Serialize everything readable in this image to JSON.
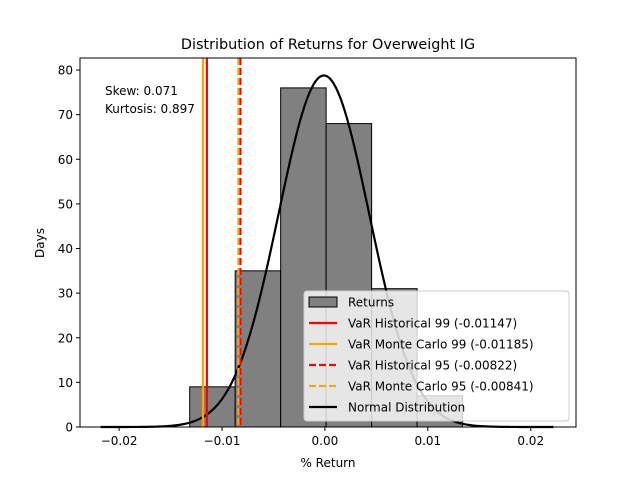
{
  "chart_data": {
    "type": "histogram",
    "title": "Distribution of Returns for Overweight IG",
    "xlabel": "% Return",
    "ylabel": "Days",
    "xlim": [
      -0.0238,
      0.0244
    ],
    "ylim": [
      0,
      82.7
    ],
    "x_ticks": [
      -0.02,
      -0.01,
      0.0,
      0.01,
      0.02
    ],
    "x_tick_labels": [
      "−0.02",
      "−0.01",
      "0.00",
      "0.01",
      "0.02"
    ],
    "y_ticks": [
      0,
      10,
      20,
      30,
      40,
      50,
      60,
      70,
      80
    ],
    "y_tick_labels": [
      "0",
      "10",
      "20",
      "30",
      "40",
      "50",
      "60",
      "70",
      "80"
    ],
    "bars": [
      {
        "x0": -0.01314,
        "x1": -0.00872,
        "count": 9
      },
      {
        "x0": -0.00872,
        "x1": -0.0043,
        "count": 35
      },
      {
        "x0": -0.0043,
        "x1": 0.00012,
        "count": 76
      },
      {
        "x0": 0.00012,
        "x1": 0.00454,
        "count": 68
      },
      {
        "x0": 0.00454,
        "x1": 0.00896,
        "count": 31
      },
      {
        "x0": 0.00896,
        "x1": 0.01338,
        "count": 7
      }
    ],
    "bar_color": "#808080",
    "vlines": [
      {
        "label": "VaR Historical 99 (-0.01147)",
        "x": -0.01147,
        "color": "#ff0000",
        "style": "solid"
      },
      {
        "label": "VaR Monte Carlo 99 (-0.01185)",
        "x": -0.01185,
        "color": "#ffa500",
        "style": "solid"
      },
      {
        "label": "VaR Historical 95 (-0.00822)",
        "x": -0.00822,
        "color": "#ff0000",
        "style": "dashed"
      },
      {
        "label": "VaR Monte Carlo 95 (-0.00841)",
        "x": -0.00841,
        "color": "#ffa500",
        "style": "dashed"
      }
    ],
    "normal_curve": {
      "label": "Normal Distribution",
      "color": "#000000",
      "mean": -0.0001,
      "std": 0.0044,
      "peak": 78.8,
      "x_range": [
        -0.0218,
        0.0222
      ]
    },
    "legend": {
      "position": "lower-right",
      "items": [
        {
          "label": "Returns",
          "kind": "patch",
          "color": "#808080"
        },
        {
          "label": "VaR Historical 99 (-0.01147)",
          "kind": "line",
          "color": "#ff0000",
          "style": "solid"
        },
        {
          "label": "VaR Monte Carlo 99 (-0.01185)",
          "kind": "line",
          "color": "#ffa500",
          "style": "solid"
        },
        {
          "label": "VaR Historical 95 (-0.00822)",
          "kind": "line",
          "color": "#ff0000",
          "style": "dashed"
        },
        {
          "label": "VaR Monte Carlo 95 (-0.00841)",
          "kind": "line",
          "color": "#ffa500",
          "style": "dashed"
        },
        {
          "label": "Normal Distribution",
          "kind": "line",
          "color": "#000000",
          "style": "solid"
        }
      ]
    },
    "annotations": [
      "Skew: 0.071",
      "Kurtosis: 0.897"
    ],
    "grid": false
  }
}
